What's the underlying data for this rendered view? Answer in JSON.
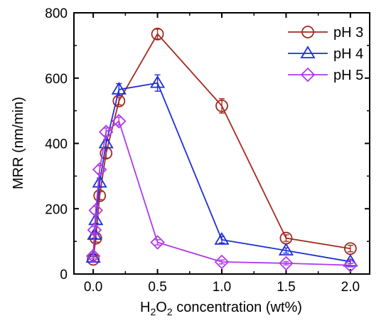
{
  "chart_data": {
    "type": "line",
    "xlabel": {
      "pre": "H",
      "sub1": "2",
      "mid": "O",
      "sub2": "2",
      "post": " concentration (wt%)"
    },
    "ylabel": "MRR (nm/min)",
    "xlim": [
      -0.15,
      2.15
    ],
    "ylim": [
      0,
      800
    ],
    "xticks": [
      "0.0",
      "0.5",
      "1.0",
      "1.5",
      "2.0"
    ],
    "xtick_values": [
      0,
      0.5,
      1.0,
      1.5,
      2.0
    ],
    "yticks": [
      "0",
      "200",
      "400",
      "600",
      "800"
    ],
    "ytick_values": [
      0,
      200,
      400,
      600,
      800
    ],
    "legend_position": "top-right",
    "series": [
      {
        "name": "pH 3",
        "color": "#a52a1f",
        "marker": "circle",
        "x": [
          0,
          0.02,
          0.05,
          0.1,
          0.2,
          0.5,
          1.0,
          1.5,
          2.0
        ],
        "y": [
          45,
          110,
          240,
          370,
          530,
          735,
          515,
          110,
          78
        ],
        "err": [
          8,
          12,
          12,
          15,
          12,
          15,
          22,
          10,
          10
        ]
      },
      {
        "name": "pH 4",
        "color": "#1f2fd6",
        "marker": "triangle",
        "x": [
          0,
          0.01,
          0.02,
          0.05,
          0.1,
          0.2,
          0.5,
          1.0,
          1.5,
          2.0
        ],
        "y": [
          50,
          120,
          165,
          280,
          400,
          565,
          585,
          105,
          72,
          38
        ],
        "err": [
          8,
          10,
          10,
          14,
          12,
          18,
          25,
          10,
          8,
          6
        ]
      },
      {
        "name": "pH 5",
        "color": "#b03ae8",
        "marker": "diamond",
        "x": [
          0,
          0.01,
          0.02,
          0.05,
          0.1,
          0.2,
          0.5,
          1.0,
          1.5,
          2.0
        ],
        "y": [
          55,
          135,
          195,
          320,
          435,
          468,
          97,
          37,
          33,
          27
        ],
        "err": [
          8,
          10,
          12,
          12,
          12,
          12,
          8,
          6,
          5,
          5
        ]
      }
    ]
  }
}
